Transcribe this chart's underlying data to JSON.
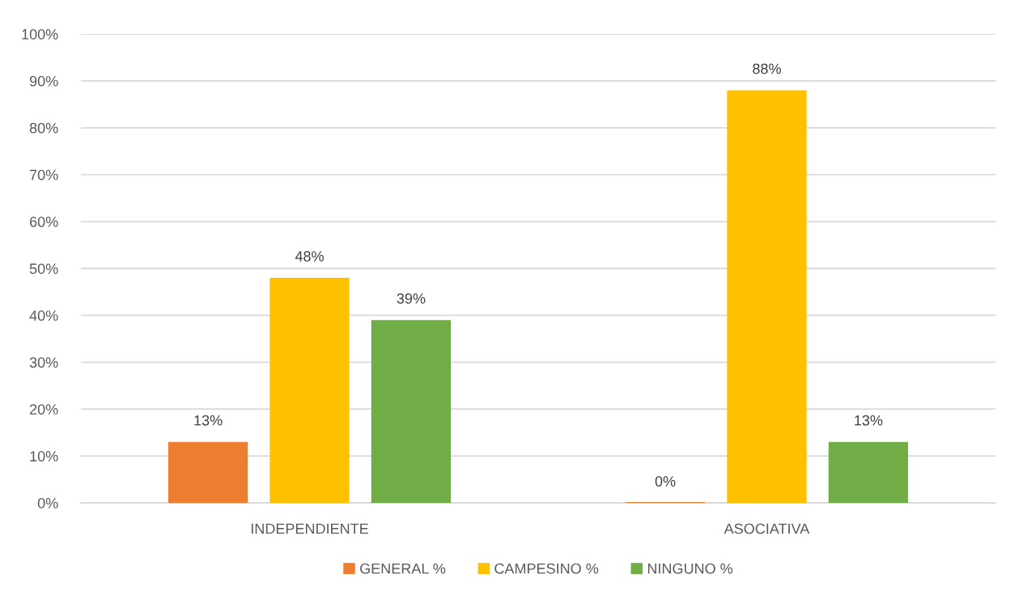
{
  "chart_data": {
    "type": "bar",
    "categories": [
      "INDEPENDIENTE",
      "ASOCIATIVA"
    ],
    "series": [
      {
        "name": "GENERAL %",
        "color": "#ed7d31",
        "values": [
          13,
          0
        ],
        "value_labels": [
          "13%",
          "0%"
        ]
      },
      {
        "name": "CAMPESINO %",
        "color": "#ffc000",
        "values": [
          48,
          88
        ],
        "value_labels": [
          "48%",
          "88%"
        ]
      },
      {
        "name": "NINGUNO %",
        "color": "#70ad47",
        "values": [
          39,
          13
        ],
        "value_labels": [
          "39%",
          "13%"
        ]
      }
    ],
    "ylim": [
      0,
      100
    ],
    "yticks": [
      {
        "value": 0,
        "label": "0%"
      },
      {
        "value": 10,
        "label": "10%"
      },
      {
        "value": 20,
        "label": "20%"
      },
      {
        "value": 30,
        "label": "30%"
      },
      {
        "value": 40,
        "label": "40%"
      },
      {
        "value": 50,
        "label": "50%"
      },
      {
        "value": 60,
        "label": "60%"
      },
      {
        "value": 70,
        "label": "70%"
      },
      {
        "value": 80,
        "label": "80%"
      },
      {
        "value": 90,
        "label": "90%"
      },
      {
        "value": 100,
        "label": "100%"
      }
    ],
    "grid": "y",
    "legend": "bottom"
  }
}
